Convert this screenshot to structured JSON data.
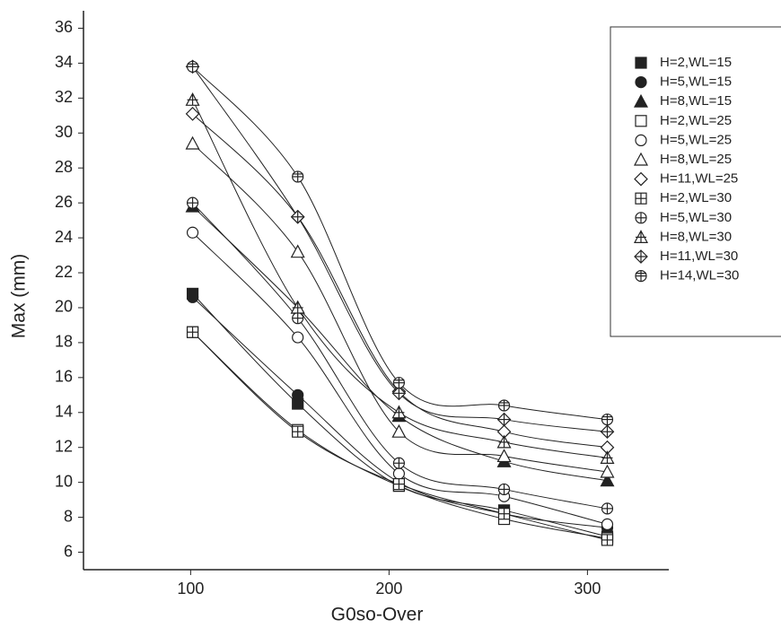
{
  "chart_data": {
    "type": "scatter",
    "x_label": "G0so-Over",
    "y_label": "Max (mm)",
    "xlim": [
      46,
      341
    ],
    "ylim": [
      5,
      37
    ],
    "xticks": [
      100,
      200,
      300
    ],
    "yticks": [
      6,
      8,
      10,
      12,
      14,
      16,
      18,
      20,
      22,
      24,
      26,
      28,
      30,
      32,
      34,
      36
    ],
    "x": [
      101,
      154,
      205,
      258,
      310
    ],
    "series": [
      {
        "name": "H=2,WL=15",
        "color": "#222222",
        "marker": "square-filled",
        "values": [
          20.8,
          14.5,
          9.8,
          8.4,
          6.9
        ]
      },
      {
        "name": "H=5,WL=15",
        "color": "#222222",
        "marker": "circle-filled",
        "values": [
          20.6,
          15.0,
          10.0,
          8.2,
          7.4
        ]
      },
      {
        "name": "H=8,WL=15",
        "color": "#222222",
        "marker": "triangle-filled",
        "values": [
          25.8,
          20.0,
          13.8,
          11.2,
          10.1
        ]
      },
      {
        "name": "H=2,WL=25",
        "color": "#222222",
        "marker": "square",
        "values": [
          18.6,
          13.0,
          9.8,
          7.9,
          6.8
        ]
      },
      {
        "name": "H=5,WL=25",
        "color": "#222222",
        "marker": "circle",
        "values": [
          24.3,
          18.3,
          10.5,
          9.2,
          7.6
        ]
      },
      {
        "name": "H=8,WL=25",
        "color": "#222222",
        "marker": "triangle",
        "values": [
          29.4,
          23.2,
          12.9,
          11.5,
          10.6
        ]
      },
      {
        "name": "H=11,WL=25",
        "color": "#222222",
        "marker": "diamond",
        "values": [
          31.1,
          25.2,
          15.2,
          12.9,
          12.0
        ]
      },
      {
        "name": "H=2,WL=30",
        "color": "#222222",
        "marker": "square-plus",
        "values": [
          18.6,
          12.9,
          9.9,
          8.2,
          6.7
        ]
      },
      {
        "name": "H=5,WL=30",
        "color": "#222222",
        "marker": "circle-plus",
        "values": [
          26.0,
          19.4,
          11.1,
          9.6,
          8.5
        ]
      },
      {
        "name": "H=8,WL=30",
        "color": "#222222",
        "marker": "triangle-plus",
        "values": [
          31.9,
          20.0,
          14.0,
          12.3,
          11.4
        ]
      },
      {
        "name": "H=11,WL=30",
        "color": "#222222",
        "marker": "diamond-plus",
        "values": [
          33.8,
          25.2,
          15.1,
          13.6,
          12.9
        ]
      },
      {
        "name": "H=14,WL=30",
        "color": "#222222",
        "marker": "circle-cross",
        "values": [
          33.8,
          27.5,
          15.7,
          14.4,
          13.6
        ]
      }
    ]
  }
}
